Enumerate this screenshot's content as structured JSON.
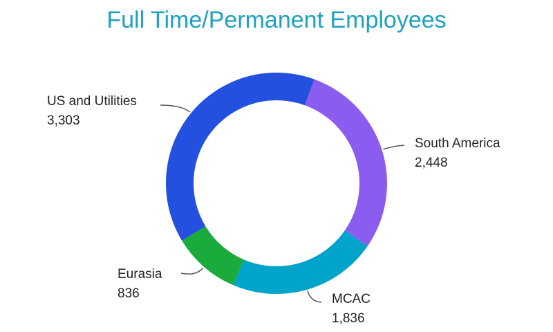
{
  "chart_data": {
    "type": "donut",
    "title": "Full Time/Permanent Employees",
    "categories": [
      "South America",
      "MCAC",
      "Eurasia",
      "US and Utilities"
    ],
    "values": [
      2448,
      1836,
      836,
      3303
    ],
    "value_labels": [
      "2,448",
      "1,836",
      "836",
      "3,303"
    ],
    "colors": [
      "#8b5cf0",
      "#00a3c9",
      "#1aab3c",
      "#2350de"
    ]
  }
}
